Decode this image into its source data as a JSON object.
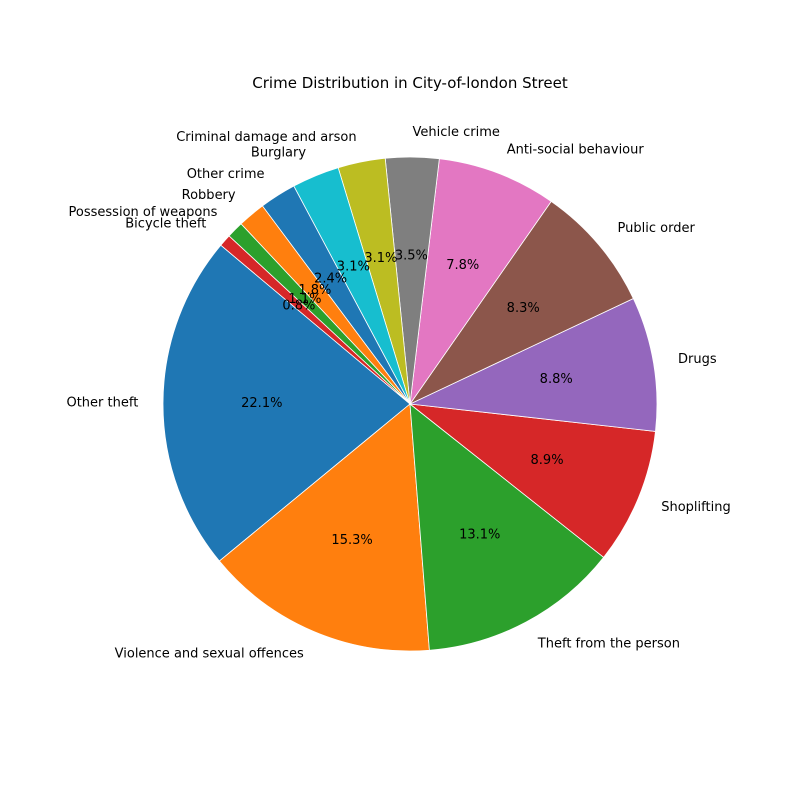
{
  "chart_data": {
    "type": "pie",
    "title": "Crime Distribution in City-of-london Street",
    "start_angle_deg": 140,
    "direction": "counterclockwise",
    "slices": [
      {
        "label": "Other theft",
        "value": 22.1,
        "pct_label": "22.1%",
        "color": "#1f77b4"
      },
      {
        "label": "Violence and sexual offences",
        "value": 15.3,
        "pct_label": "15.3%",
        "color": "#ff7f0e"
      },
      {
        "label": "Theft from the person",
        "value": 13.1,
        "pct_label": "13.1%",
        "color": "#2ca02c"
      },
      {
        "label": "Shoplifting",
        "value": 8.9,
        "pct_label": "8.9%",
        "color": "#d62728"
      },
      {
        "label": "Drugs",
        "value": 8.8,
        "pct_label": "8.8%",
        "color": "#9467bd"
      },
      {
        "label": "Public order",
        "value": 8.3,
        "pct_label": "8.3%",
        "color": "#8c564b"
      },
      {
        "label": "Anti-social behaviour",
        "value": 7.8,
        "pct_label": "7.8%",
        "color": "#e377c2"
      },
      {
        "label": "Vehicle crime",
        "value": 3.5,
        "pct_label": "3.5%",
        "color": "#7f7f7f"
      },
      {
        "label": "Criminal damage and arson",
        "value": 3.1,
        "pct_label": "3.1%",
        "color": "#bcbd22"
      },
      {
        "label": "Burglary",
        "value": 3.1,
        "pct_label": "3.1%",
        "color": "#17becf"
      },
      {
        "label": "Other crime",
        "value": 2.4,
        "pct_label": "2.4%",
        "color": "#1f77b4"
      },
      {
        "label": "Robbery",
        "value": 1.8,
        "pct_label": "1.8%",
        "color": "#ff7f0e"
      },
      {
        "label": "Possession of weapons",
        "value": 1.1,
        "pct_label": "1.1%",
        "color": "#2ca02c"
      },
      {
        "label": "Bicycle theft",
        "value": 0.8,
        "pct_label": "0.8%",
        "color": "#d62728"
      }
    ]
  }
}
